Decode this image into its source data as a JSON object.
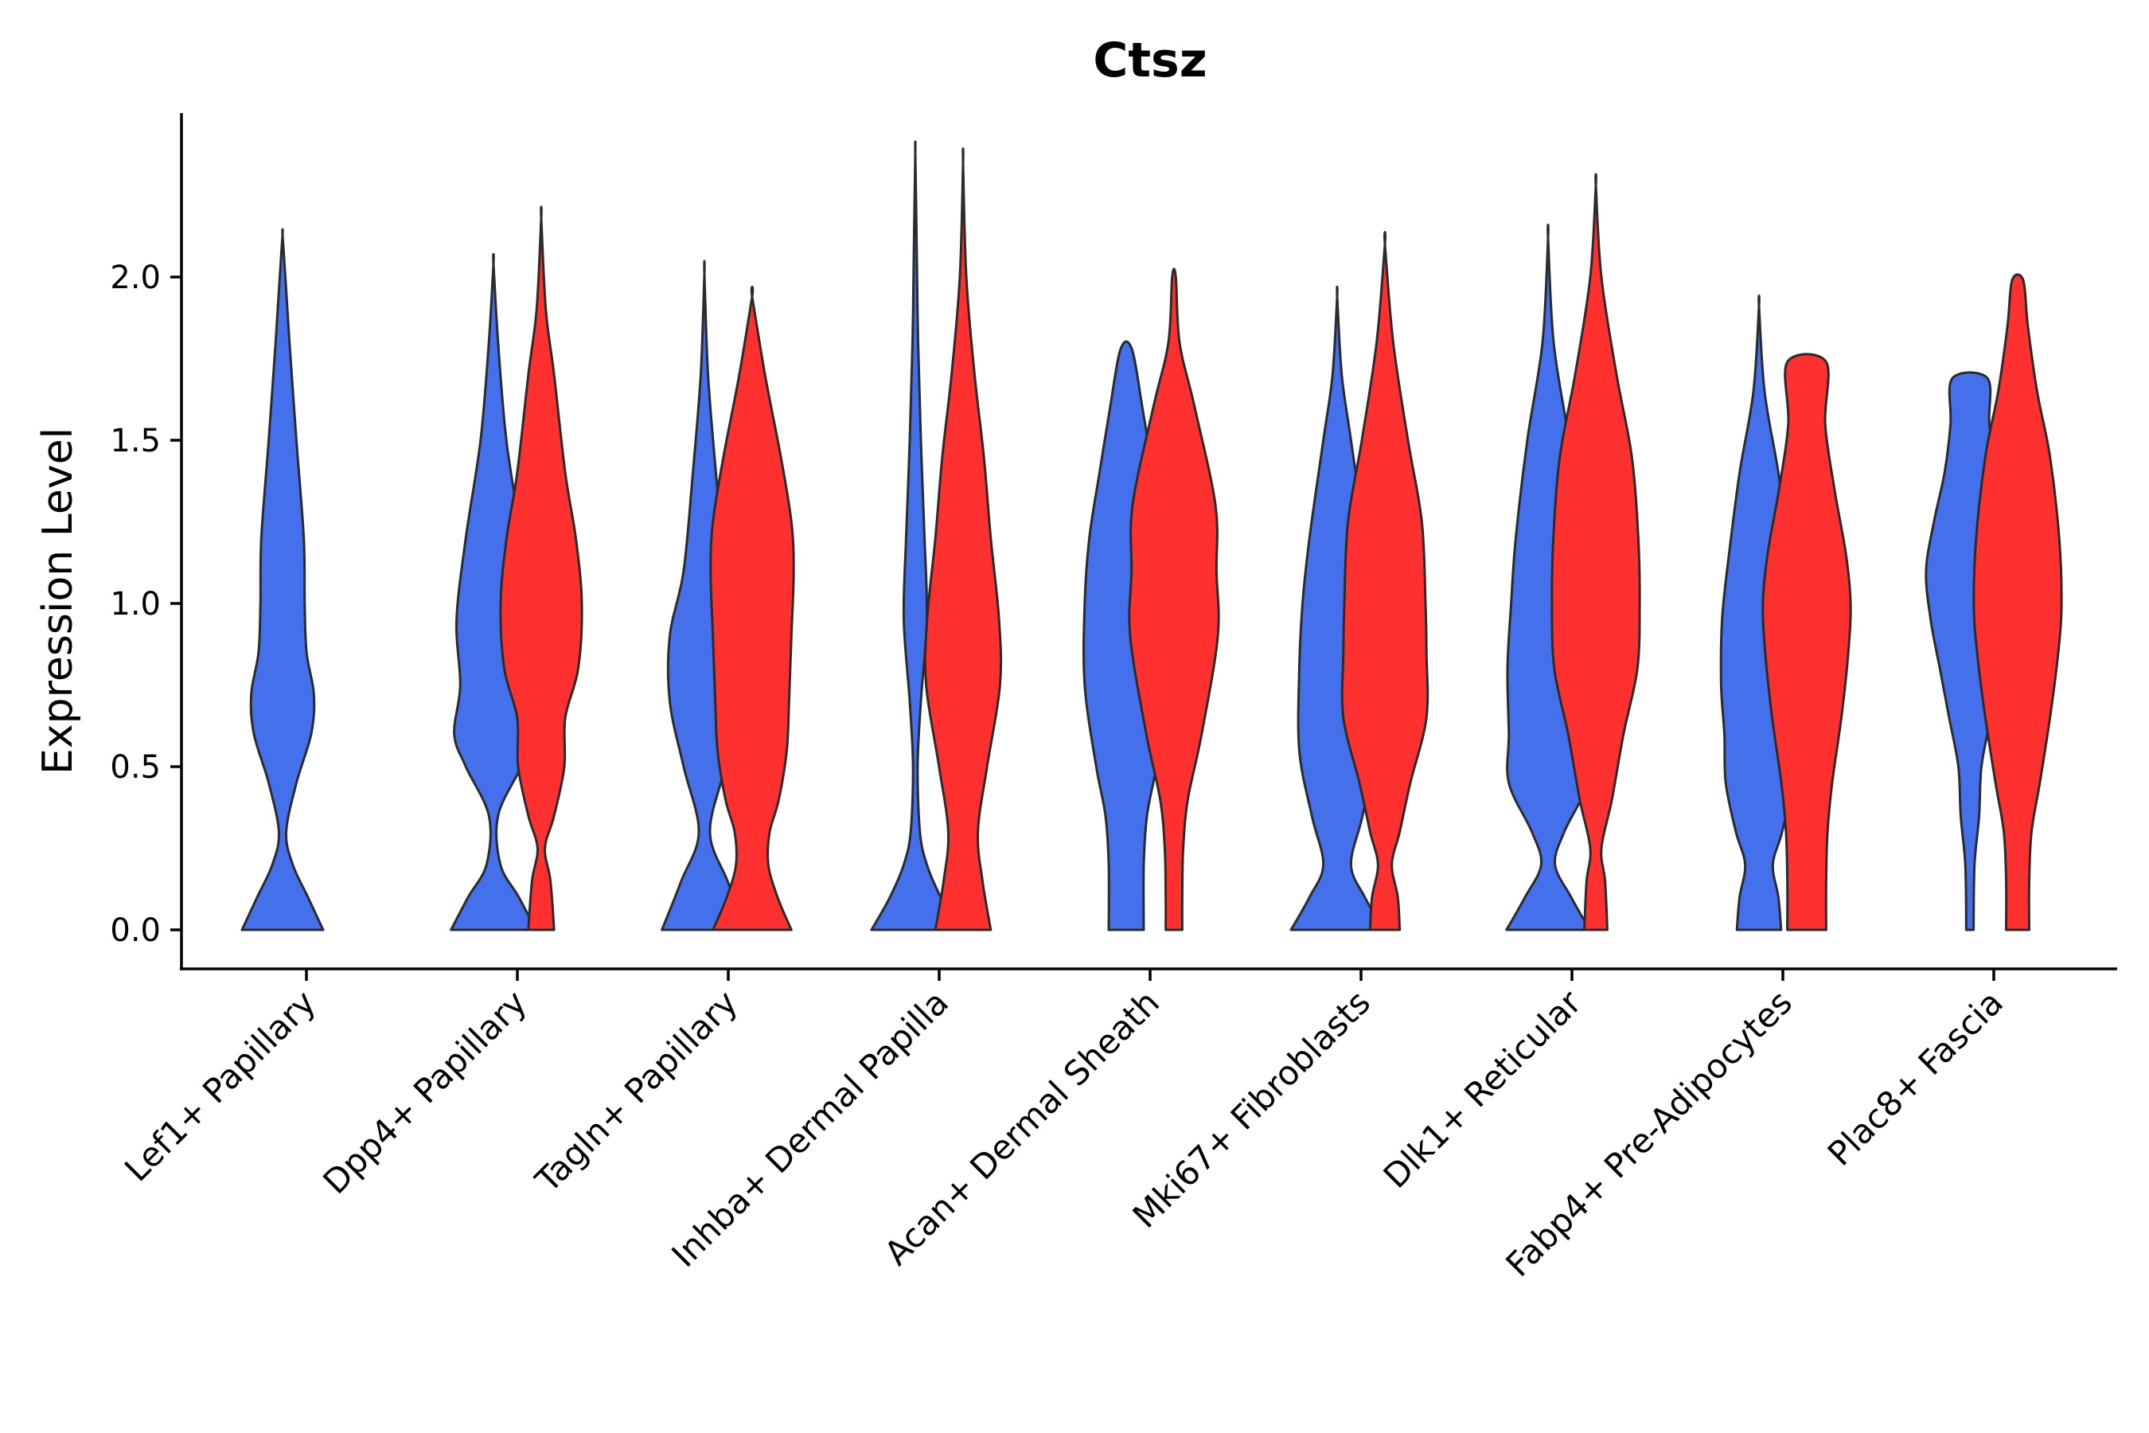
{
  "chart_data": {
    "type": "violin",
    "title": "Ctsz",
    "xlabel": "",
    "ylabel": "Expression Level",
    "ylim": [
      -0.12,
      2.5
    ],
    "yticks": [
      0.0,
      0.5,
      1.0,
      1.5,
      2.0
    ],
    "ytick_labels": [
      "0.0",
      "0.5",
      "1.0",
      "1.5",
      "2.0"
    ],
    "grid": false,
    "legend": "none",
    "colors": {
      "group_a": "#4470EC",
      "group_b": "#FF3030",
      "outline": "#2b2b2b"
    },
    "categories": [
      "Lef1+ Papillary",
      "Dpp4+ Papillary",
      "Tagln+ Papillary",
      "Inhba+ Dermal Papilla",
      "Acan+ Dermal Sheath",
      "Mki67+ Fibroblasts",
      "Dlk1+ Reticular",
      "Fabp4+ Pre-Adipocytes",
      "Plac8+ Fascia"
    ],
    "violins": [
      {
        "category": "Lef1+ Papillary",
        "group": "group_a",
        "y": [
          0,
          0.1,
          0.2,
          0.3,
          0.45,
          0.6,
          0.72,
          0.85,
          1.0,
          1.2,
          1.5,
          1.8,
          2.0,
          2.13
        ],
        "w": [
          0.88,
          0.55,
          0.22,
          0.08,
          0.3,
          0.62,
          0.68,
          0.52,
          0.48,
          0.46,
          0.3,
          0.15,
          0.06,
          0.0
        ]
      },
      {
        "category": "Dpp4+ Papillary",
        "group": "group_a",
        "y": [
          0,
          0.1,
          0.2,
          0.35,
          0.5,
          0.6,
          0.75,
          0.95,
          1.2,
          1.5,
          1.8,
          2.04
        ],
        "w": [
          0.92,
          0.55,
          0.15,
          0.1,
          0.6,
          0.85,
          0.72,
          0.8,
          0.6,
          0.28,
          0.1,
          0.0
        ]
      },
      {
        "category": "Dpp4+ Papillary",
        "group": "group_b",
        "y": [
          0,
          0.15,
          0.25,
          0.35,
          0.5,
          0.65,
          0.8,
          1.0,
          1.2,
          1.4,
          1.7,
          1.9,
          2.18
        ],
        "w": [
          0.28,
          0.2,
          0.08,
          0.28,
          0.5,
          0.52,
          0.8,
          0.88,
          0.75,
          0.52,
          0.28,
          0.1,
          0.0
        ]
      },
      {
        "category": "Tagln+ Papillary",
        "group": "group_a",
        "y": [
          0,
          0.15,
          0.3,
          0.5,
          0.7,
          0.9,
          1.1,
          1.4,
          1.7,
          2.01
        ],
        "w": [
          0.92,
          0.5,
          0.12,
          0.45,
          0.75,
          0.75,
          0.45,
          0.25,
          0.08,
          0.0
        ]
      },
      {
        "category": "Tagln+ Papillary",
        "group": "group_b",
        "y": [
          0,
          0.1,
          0.2,
          0.3,
          0.4,
          0.55,
          0.7,
          0.9,
          1.1,
          1.25,
          1.45,
          1.7,
          1.94
        ],
        "w": [
          0.85,
          0.55,
          0.35,
          0.38,
          0.58,
          0.75,
          0.8,
          0.85,
          0.9,
          0.85,
          0.62,
          0.28,
          0.0
        ]
      },
      {
        "category": "Inhba+ Dermal Papilla",
        "group": "group_a",
        "y": [
          0,
          0.1,
          0.2,
          0.3,
          0.5,
          0.7,
          0.95,
          1.2,
          1.5,
          1.8,
          2.1,
          2.38
        ],
        "w": [
          0.95,
          0.55,
          0.25,
          0.1,
          0.05,
          0.12,
          0.25,
          0.2,
          0.12,
          0.06,
          0.03,
          0.0
        ]
      },
      {
        "category": "Inhba+ Dermal Papilla",
        "group": "group_b",
        "y": [
          0,
          0.15,
          0.3,
          0.5,
          0.75,
          0.95,
          1.2,
          1.45,
          1.7,
          2.0,
          2.35
        ],
        "w": [
          0.6,
          0.42,
          0.32,
          0.52,
          0.8,
          0.78,
          0.6,
          0.45,
          0.25,
          0.07,
          0.0
        ]
      },
      {
        "category": "Acan+ Dermal Sheath",
        "group": "group_a",
        "y": [
          0,
          0.2,
          0.35,
          0.5,
          0.75,
          1.0,
          1.2,
          1.4,
          1.6,
          1.78
        ],
        "w": [
          0.38,
          0.38,
          0.45,
          0.65,
          0.9,
          0.9,
          0.8,
          0.58,
          0.35,
          0.12
        ]
      },
      {
        "category": "Acan+ Dermal Sheath",
        "group": "group_b",
        "y": [
          0,
          0.1,
          0.25,
          0.4,
          0.6,
          0.9,
          1.1,
          1.3,
          1.6,
          1.8,
          2.0
        ],
        "w": [
          0.18,
          0.18,
          0.2,
          0.3,
          0.6,
          0.95,
          0.92,
          0.9,
          0.45,
          0.12,
          0.04
        ]
      },
      {
        "category": "Mki67+ Fibroblasts",
        "group": "group_a",
        "y": [
          0,
          0.1,
          0.2,
          0.35,
          0.55,
          0.8,
          1.0,
          1.2,
          1.5,
          1.7,
          1.94
        ],
        "w": [
          1.0,
          0.6,
          0.3,
          0.55,
          0.82,
          0.82,
          0.75,
          0.6,
          0.3,
          0.1,
          0.0
        ]
      },
      {
        "category": "Mki67+ Fibroblasts",
        "group": "group_b",
        "y": [
          0,
          0.1,
          0.2,
          0.3,
          0.45,
          0.65,
          0.85,
          1.0,
          1.25,
          1.5,
          1.8,
          2.1
        ],
        "w": [
          0.32,
          0.28,
          0.15,
          0.32,
          0.55,
          0.9,
          0.9,
          0.88,
          0.8,
          0.5,
          0.18,
          0.0
        ]
      },
      {
        "category": "Dlk1+ Reticular",
        "group": "group_a",
        "y": [
          0,
          0.1,
          0.2,
          0.3,
          0.45,
          0.6,
          0.8,
          1.0,
          1.2,
          1.5,
          1.8,
          2.12
        ],
        "w": [
          0.9,
          0.5,
          0.15,
          0.35,
          0.85,
          0.85,
          0.88,
          0.8,
          0.7,
          0.45,
          0.12,
          0.0
        ]
      },
      {
        "category": "Dlk1+ Reticular",
        "group": "group_b",
        "y": [
          0,
          0.15,
          0.25,
          0.4,
          0.6,
          0.8,
          1.0,
          1.2,
          1.45,
          1.7,
          2.0,
          2.28
        ],
        "w": [
          0.25,
          0.2,
          0.12,
          0.35,
          0.6,
          0.9,
          0.95,
          0.92,
          0.78,
          0.45,
          0.12,
          0.0
        ]
      },
      {
        "category": "Fabp4+ Pre-Adipocytes",
        "group": "group_a",
        "y": [
          0,
          0.1,
          0.2,
          0.3,
          0.45,
          0.6,
          0.75,
          0.95,
          1.15,
          1.4,
          1.65,
          1.91
        ],
        "w": [
          0.48,
          0.42,
          0.3,
          0.5,
          0.72,
          0.75,
          0.82,
          0.8,
          0.65,
          0.42,
          0.12,
          0.0
        ]
      },
      {
        "category": "Fabp4+ Pre-Adipocytes",
        "group": "group_b",
        "y": [
          0,
          0.15,
          0.3,
          0.45,
          0.65,
          0.85,
          1.0,
          1.15,
          1.35,
          1.55,
          1.74
        ],
        "w": [
          0.42,
          0.42,
          0.45,
          0.55,
          0.75,
          0.9,
          0.95,
          0.85,
          0.6,
          0.4,
          0.42
        ]
      },
      {
        "category": "Plac8+ Fascia",
        "group": "group_a",
        "y": [
          0,
          0.2,
          0.35,
          0.5,
          0.65,
          0.8,
          0.95,
          1.1,
          1.25,
          1.4,
          1.55,
          1.69
        ],
        "w": [
          0.08,
          0.1,
          0.2,
          0.25,
          0.45,
          0.65,
          0.85,
          0.95,
          0.78,
          0.55,
          0.42,
          0.38
        ]
      },
      {
        "category": "Plac8+ Fascia",
        "group": "group_b",
        "y": [
          0,
          0.15,
          0.3,
          0.45,
          0.65,
          0.85,
          1.0,
          1.2,
          1.45,
          1.65,
          1.85,
          1.99
        ],
        "w": [
          0.25,
          0.25,
          0.3,
          0.48,
          0.7,
          0.88,
          0.95,
          0.9,
          0.7,
          0.42,
          0.22,
          0.12
        ]
      }
    ]
  }
}
